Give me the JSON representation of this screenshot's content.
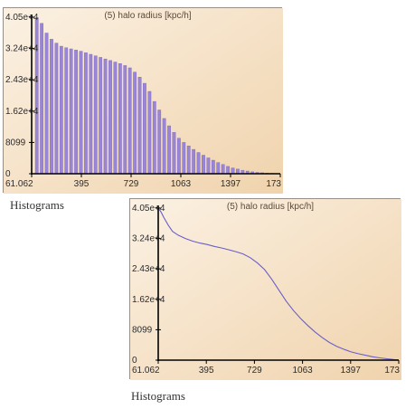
{
  "captions": [
    "Histograms",
    "Histograms"
  ],
  "chart_data": [
    {
      "type": "bar",
      "title": "(5) halo radius [kpc/h]",
      "xlabel": "",
      "ylabel": "",
      "x_ticks": [
        "61.062",
        "395",
        "729",
        "1063",
        "1397",
        "173"
      ],
      "y_ticks": [
        "0",
        "8099",
        "1.62e+4",
        "2.43e+4",
        "3.24e+4",
        "4.05e+4"
      ],
      "xlim": [
        61.062,
        1731
      ],
      "ylim": [
        0,
        40500
      ],
      "x": [
        78,
        111,
        145,
        178,
        212,
        245,
        278,
        312,
        345,
        378,
        412,
        445,
        479,
        512,
        545,
        579,
        612,
        646,
        679,
        712,
        746,
        779,
        813,
        846,
        879,
        913,
        946,
        980,
        1013,
        1046,
        1080,
        1113,
        1147,
        1180,
        1213,
        1247,
        1280,
        1314,
        1347,
        1380,
        1414,
        1447,
        1481,
        1514,
        1547,
        1581,
        1614,
        1648,
        1681,
        1714
      ],
      "values": [
        40400,
        38900,
        36400,
        34800,
        33800,
        33000,
        32600,
        32300,
        32000,
        31700,
        31300,
        30900,
        30500,
        30100,
        29700,
        29300,
        28900,
        28500,
        28000,
        27400,
        26300,
        25000,
        23400,
        21300,
        18700,
        16500,
        14300,
        12400,
        10700,
        9200,
        8100,
        7200,
        6300,
        5500,
        4800,
        4100,
        3500,
        2900,
        2400,
        1900,
        1500,
        1200,
        900,
        700,
        500,
        350,
        250,
        150,
        100,
        60
      ],
      "bar_color": "#9a86d6",
      "background": "#f6e3c8",
      "grid": false
    },
    {
      "type": "line",
      "title": "(5) halo radius [kpc/h]",
      "xlabel": "",
      "ylabel": "",
      "x_ticks": [
        "61.062",
        "395",
        "729",
        "1063",
        "1397",
        "173"
      ],
      "y_ticks": [
        "0",
        "8099",
        "1.62e+4",
        "2.43e+4",
        "3.24e+4",
        "4.05e+4"
      ],
      "xlim": [
        61.062,
        1731
      ],
      "ylim": [
        0,
        40500
      ],
      "x": [
        61,
        80,
        100,
        130,
        160,
        200,
        250,
        300,
        350,
        400,
        450,
        500,
        550,
        600,
        650,
        700,
        750,
        800,
        850,
        900,
        950,
        1000,
        1050,
        1100,
        1150,
        1200,
        1250,
        1300,
        1350,
        1400,
        1450,
        1500,
        1550,
        1600,
        1650,
        1700,
        1731
      ],
      "values": [
        40500,
        39500,
        38000,
        36000,
        34300,
        33300,
        32400,
        31700,
        31200,
        30800,
        30300,
        29900,
        29400,
        28900,
        28300,
        27300,
        25900,
        24100,
        21500,
        18600,
        15700,
        13200,
        11100,
        9200,
        7500,
        6000,
        4700,
        3700,
        2900,
        2200,
        1700,
        1300,
        900,
        600,
        350,
        150,
        50
      ],
      "line_color": "#6a5fc8",
      "background": "#f6e3c8",
      "grid": false
    }
  ]
}
